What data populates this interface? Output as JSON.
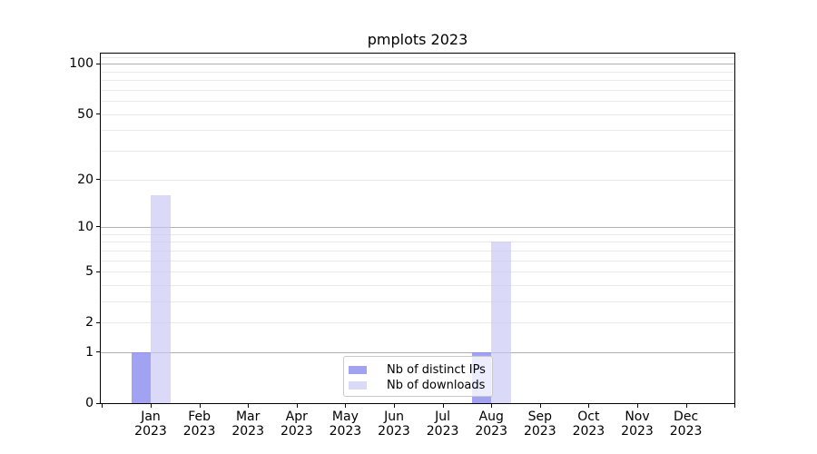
{
  "title": "pmplots 2023",
  "legend": {
    "position": "lower center",
    "items": [
      {
        "label": "Nb of distinct IPs",
        "color": "rgba(136,136,238,0.78)"
      },
      {
        "label": "Nb of downloads",
        "color": "rgba(199,199,245,0.66)"
      }
    ]
  },
  "axes": {
    "x_year_line": "2023",
    "x_labels": [
      "Jan",
      "Feb",
      "Mar",
      "Apr",
      "May",
      "Jun",
      "Jul",
      "Aug",
      "Sep",
      "Oct",
      "Nov",
      "Dec"
    ],
    "y_tick_labels": [
      "0",
      "1",
      "2",
      "5",
      "10",
      "20",
      "50",
      "100"
    ]
  },
  "chart_data": {
    "type": "bar",
    "title": "pmplots 2023",
    "categories": [
      "Jan 2023",
      "Feb 2023",
      "Mar 2023",
      "Apr 2023",
      "May 2023",
      "Jun 2023",
      "Jul 2023",
      "Aug 2023",
      "Sep 2023",
      "Oct 2023",
      "Nov 2023",
      "Dec 2023"
    ],
    "series": [
      {
        "name": "Nb of distinct IPs",
        "color": "rgba(136,136,238,0.78)",
        "values": [
          1,
          0,
          0,
          0,
          0,
          0,
          0,
          1,
          0,
          0,
          0,
          0
        ]
      },
      {
        "name": "Nb of downloads",
        "color": "rgba(199,199,245,0.66)",
        "values": [
          16,
          0,
          0,
          0,
          0,
          0,
          0,
          8,
          0,
          0,
          0,
          0
        ]
      }
    ],
    "xlabel": "",
    "ylabel": "",
    "yscale": "log1p",
    "ylim": [
      0,
      115
    ],
    "yticks": [
      0,
      1,
      2,
      5,
      10,
      20,
      50,
      100
    ],
    "grid_major_y": [
      1,
      10,
      100
    ],
    "grid_minor_y": [
      2,
      3,
      4,
      5,
      6,
      7,
      8,
      9,
      20,
      30,
      40,
      50,
      60,
      70,
      80,
      90,
      110
    ],
    "legend_position": "lower center"
  }
}
